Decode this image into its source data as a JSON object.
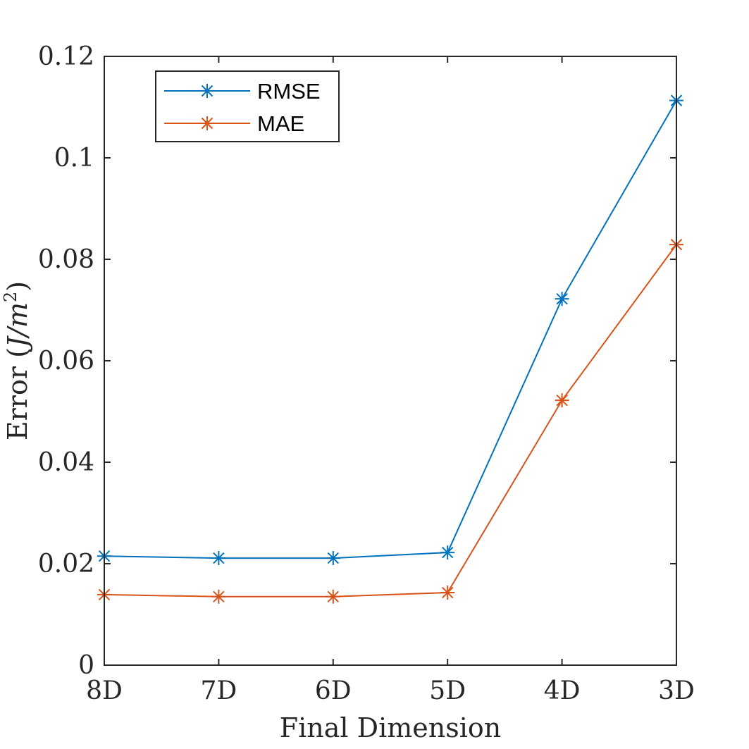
{
  "chart_data": {
    "type": "line",
    "categories": [
      "8D",
      "7D",
      "6D",
      "5D",
      "4D",
      "3D"
    ],
    "series": [
      {
        "name": "RMSE",
        "color": "#0072BD",
        "marker": "asterisk",
        "values": [
          0.0215,
          0.0211,
          0.0211,
          0.0222,
          0.0722,
          0.1113
        ]
      },
      {
        "name": "MAE",
        "color": "#D95319",
        "marker": "asterisk",
        "values": [
          0.0139,
          0.0135,
          0.0135,
          0.0143,
          0.0522,
          0.0829
        ]
      }
    ],
    "xlabel": "Final Dimension",
    "ylabel": {
      "prefix": "Error (",
      "italic_base": "J/m",
      "superscript": "2",
      "suffix": ")"
    },
    "ylim": [
      0,
      0.12
    ],
    "yticks": [
      0,
      0.02,
      0.04,
      0.06,
      0.08,
      0.1,
      0.12
    ],
    "ytick_labels": [
      "0",
      "0.02",
      "0.04",
      "0.06",
      "0.08",
      "0.1",
      "0.12"
    ],
    "grid": false,
    "box": true,
    "legend_position": "top-left"
  }
}
